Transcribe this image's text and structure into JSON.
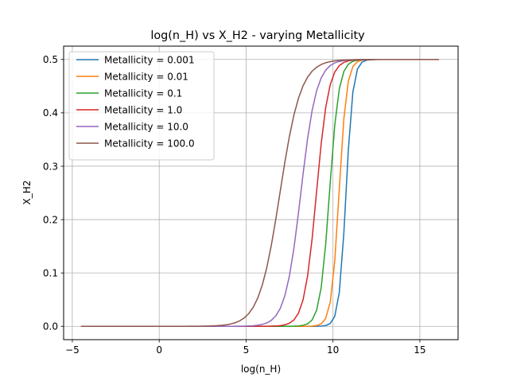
{
  "chart_data": {
    "type": "line",
    "title": "log(n_H) vs X_H2 - varying Metallicity",
    "xlabel": "log(n_H)",
    "ylabel": "X_H2",
    "xlim": [
      -5.5,
      17.2
    ],
    "ylim": [
      -0.025,
      0.525
    ],
    "xticks": [
      -5,
      0,
      5,
      10,
      15
    ],
    "yticks": [
      0.0,
      0.1,
      0.2,
      0.3,
      0.4,
      0.5
    ],
    "xtick_labels": [
      "−5",
      "0",
      "5",
      "10",
      "15"
    ],
    "ytick_labels": [
      "0.0",
      "0.1",
      "0.2",
      "0.3",
      "0.4",
      "0.5"
    ],
    "grid": true,
    "legend": "upper-left",
    "x_range": [
      -4.5,
      16.1
    ],
    "series": [
      {
        "name": "Metallicity = 0.001",
        "color": "#1f77b4",
        "midpoint": 10.75,
        "width": 0.2
      },
      {
        "name": "Metallicity = 0.01",
        "color": "#ff7f0e",
        "midpoint": 10.35,
        "width": 0.22
      },
      {
        "name": "Metallicity = 0.1",
        "color": "#2ca02c",
        "midpoint": 9.8,
        "width": 0.27
      },
      {
        "name": "Metallicity = 1.0",
        "color": "#d62728",
        "midpoint": 9.05,
        "width": 0.35
      },
      {
        "name": "Metallicity = 10.0",
        "color": "#9467bd",
        "midpoint": 8.15,
        "width": 0.45
      },
      {
        "name": "Metallicity = 100.0",
        "color": "#8c564b",
        "midpoint": 6.95,
        "width": 0.6
      }
    ]
  }
}
